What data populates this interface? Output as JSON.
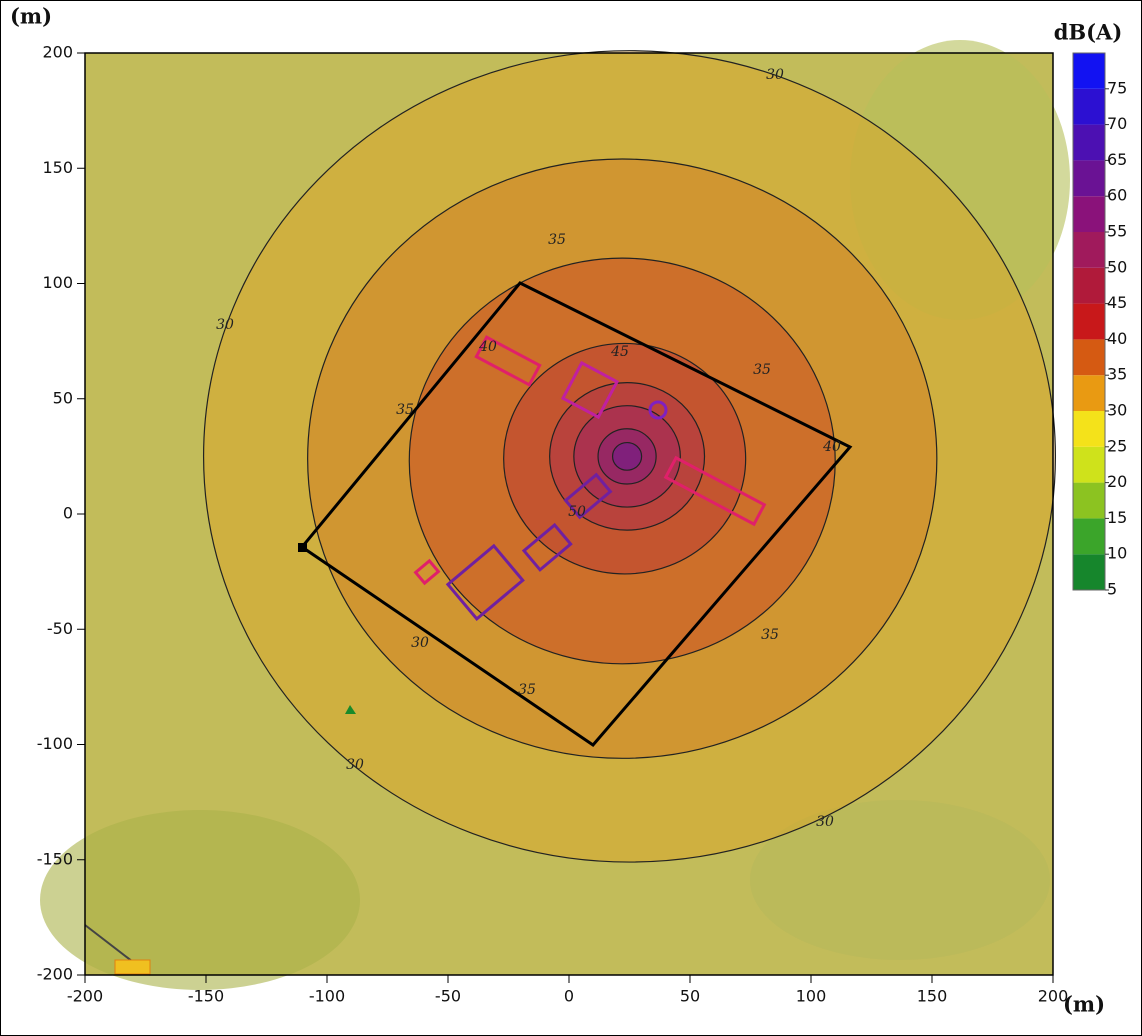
{
  "chart_data": {
    "type": "contour",
    "x_label": "(m)",
    "y_label": "(m)",
    "xlim": [
      -200,
      200
    ],
    "ylim": [
      -200,
      200
    ],
    "xticks": [
      -200,
      -150,
      -100,
      -50,
      0,
      50,
      100,
      150,
      200
    ],
    "yticks": [
      -200,
      -150,
      -100,
      -50,
      0,
      50,
      100,
      150,
      200
    ],
    "contour_levels": [
      30,
      35,
      40,
      45,
      50,
      55,
      60,
      65
    ],
    "contour_labels": [
      30,
      30,
      30,
      30,
      30,
      35,
      35,
      35,
      35,
      35,
      40,
      40,
      45,
      50
    ],
    "colorbar": {
      "title": "dB(A)",
      "lim": [
        5,
        80
      ],
      "ticks": [
        5,
        10,
        15,
        20,
        25,
        30,
        35,
        40,
        45,
        50,
        55,
        60,
        65,
        70,
        75
      ],
      "colors": [
        "#16862c",
        "#3ba52a",
        "#8cc321",
        "#cfe21b",
        "#f4e21a",
        "#e99a12",
        "#d55a12",
        "#c8181a",
        "#b01a3a",
        "#a01a5c",
        "#8a127a",
        "#6a1294",
        "#4c10b2",
        "#2c10d2",
        "#1212f2"
      ]
    }
  }
}
